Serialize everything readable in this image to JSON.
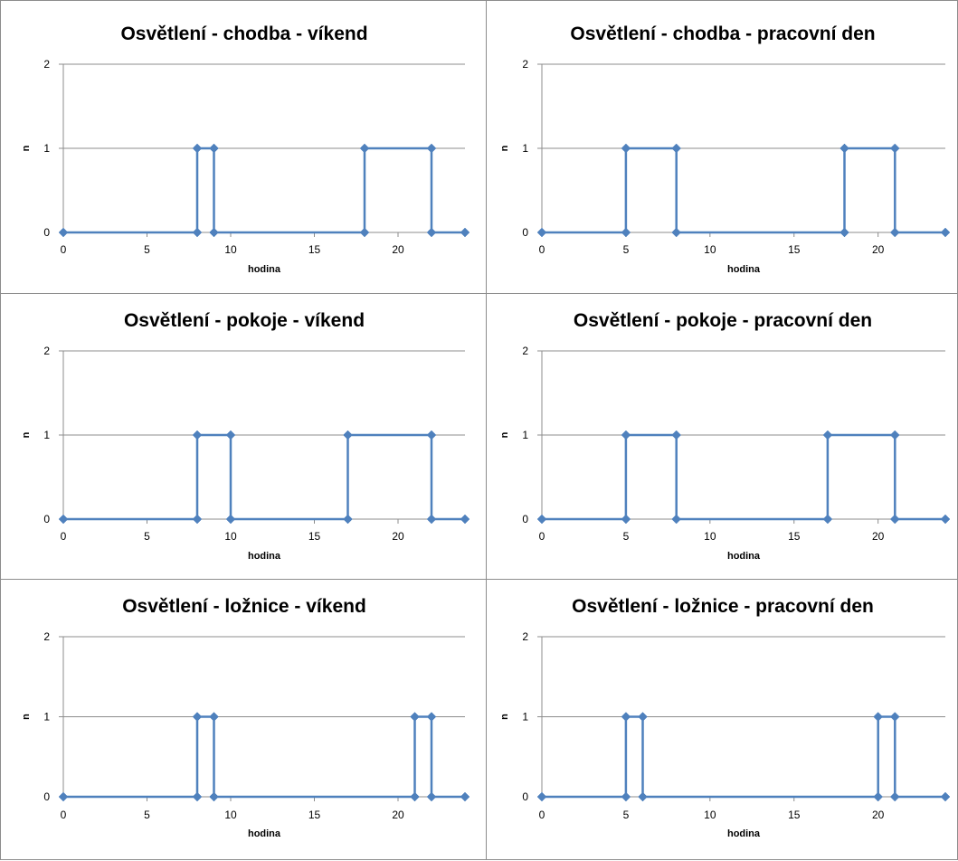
{
  "chart_data": [
    {
      "type": "line",
      "title": "Osvětlení - chodba - víkend",
      "xlabel": "hodina",
      "ylabel": "n",
      "xlim": [
        0,
        24
      ],
      "ylim": [
        0,
        2
      ],
      "xticks": [
        0,
        5,
        10,
        15,
        20
      ],
      "yticks": [
        0,
        1,
        2
      ],
      "grid": "horizontal",
      "color": "#4f81bd",
      "x": [
        0,
        8,
        8,
        9,
        9,
        18,
        18,
        22,
        22,
        24
      ],
      "y": [
        0,
        0,
        1,
        1,
        0,
        0,
        1,
        1,
        0,
        0
      ]
    },
    {
      "type": "line",
      "title": "Osvětlení - chodba - pracovní den",
      "xlabel": "hodina",
      "ylabel": "n",
      "xlim": [
        0,
        24
      ],
      "ylim": [
        0,
        2
      ],
      "xticks": [
        0,
        5,
        10,
        15,
        20
      ],
      "yticks": [
        0,
        1,
        2
      ],
      "grid": "horizontal",
      "color": "#4f81bd",
      "x": [
        0,
        5,
        5,
        8,
        8,
        18,
        18,
        21,
        21,
        24
      ],
      "y": [
        0,
        0,
        1,
        1,
        0,
        0,
        1,
        1,
        0,
        0
      ]
    },
    {
      "type": "line",
      "title": "Osvětlení - pokoje - víkend",
      "xlabel": "hodina",
      "ylabel": "n",
      "xlim": [
        0,
        24
      ],
      "ylim": [
        0,
        2
      ],
      "xticks": [
        0,
        5,
        10,
        15,
        20
      ],
      "yticks": [
        0,
        1,
        2
      ],
      "grid": "horizontal",
      "color": "#4f81bd",
      "x": [
        0,
        8,
        8,
        10,
        10,
        17,
        17,
        22,
        22,
        24
      ],
      "y": [
        0,
        0,
        1,
        1,
        0,
        0,
        1,
        1,
        0,
        0
      ]
    },
    {
      "type": "line",
      "title": "Osvětlení - pokoje - pracovní den",
      "xlabel": "hodina",
      "ylabel": "n",
      "xlim": [
        0,
        24
      ],
      "ylim": [
        0,
        2
      ],
      "xticks": [
        0,
        5,
        10,
        15,
        20
      ],
      "yticks": [
        0,
        1,
        2
      ],
      "grid": "horizontal",
      "color": "#4f81bd",
      "x": [
        0,
        5,
        5,
        8,
        8,
        17,
        17,
        21,
        21,
        24
      ],
      "y": [
        0,
        0,
        1,
        1,
        0,
        0,
        1,
        1,
        0,
        0
      ]
    },
    {
      "type": "line",
      "title": "Osvětlení - ložnice - víkend",
      "xlabel": "hodina",
      "ylabel": "n",
      "xlim": [
        0,
        24
      ],
      "ylim": [
        0,
        2
      ],
      "xticks": [
        0,
        5,
        10,
        15,
        20
      ],
      "yticks": [
        0,
        1,
        2
      ],
      "grid": "horizontal",
      "color": "#4f81bd",
      "x": [
        0,
        8,
        8,
        9,
        9,
        21,
        21,
        22,
        22,
        24
      ],
      "y": [
        0,
        0,
        1,
        1,
        0,
        0,
        1,
        1,
        0,
        0
      ]
    },
    {
      "type": "line",
      "title": "Osvětlení - ložnice - pracovní den",
      "xlabel": "hodina",
      "ylabel": "n",
      "xlim": [
        0,
        24
      ],
      "ylim": [
        0,
        2
      ],
      "xticks": [
        0,
        5,
        10,
        15,
        20
      ],
      "yticks": [
        0,
        1,
        2
      ],
      "grid": "horizontal",
      "color": "#4f81bd",
      "x": [
        0,
        5,
        5,
        6,
        6,
        20,
        20,
        21,
        21,
        24
      ],
      "y": [
        0,
        0,
        1,
        1,
        0,
        0,
        1,
        1,
        0,
        0
      ]
    }
  ]
}
